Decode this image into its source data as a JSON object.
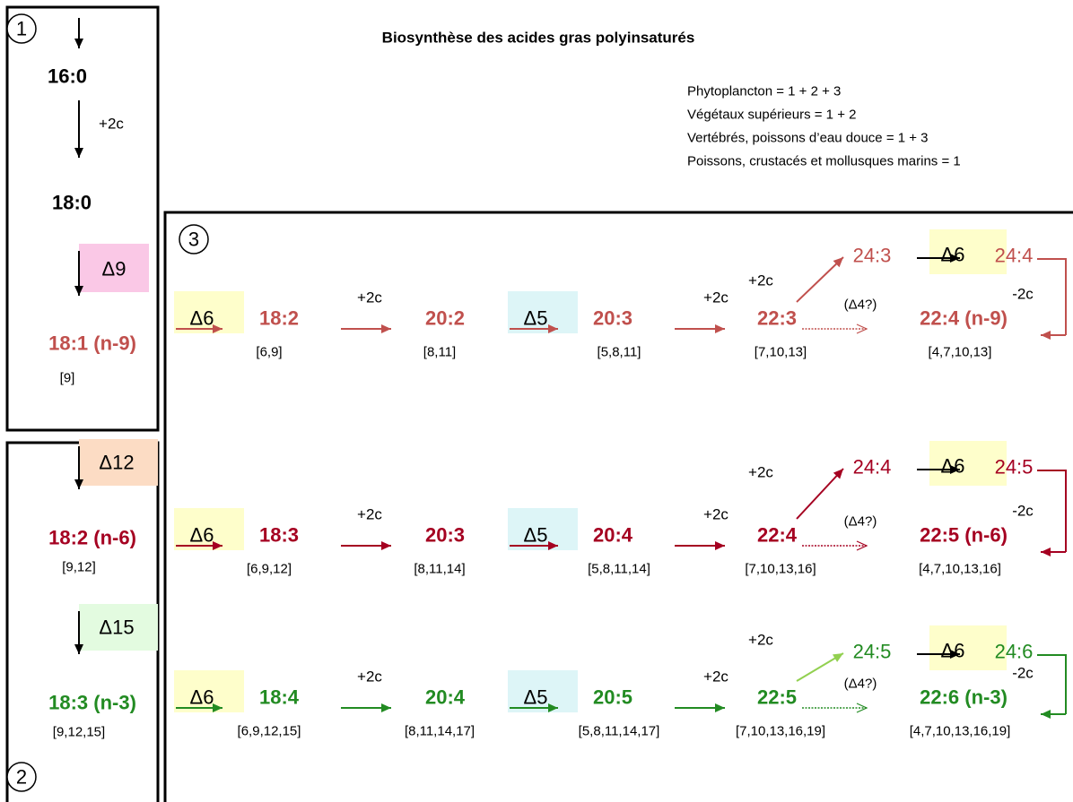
{
  "title": "Biosynthèse des acides gras polyinsaturés",
  "legend": [
    "Phytoplancton = 1 + 2 + 3",
    "Végétaux supérieurs = 1 + 2",
    "Vertébrés, poissons d’eau douce = 1 + 3",
    "Poissons, crustacés et mollusques marins = 1"
  ],
  "pathway1": {
    "number": "1",
    "products": [
      "16:0",
      "18:0",
      "18:1 (n-9)"
    ],
    "elongation": "+2c",
    "desaturase": "Δ9",
    "position": "[9]"
  },
  "pathway2": {
    "number": "2",
    "desaturases": [
      "Δ12",
      "Δ15"
    ],
    "products": [
      "18:2 (n-6)",
      "18:3 (n-3)"
    ],
    "positions": [
      "[9,12]",
      "[9,12,15]"
    ]
  },
  "pathway3": {
    "number": "3",
    "rows": [
      {
        "color": "#c0504d",
        "branch_color": "#c0504d",
        "steps": [
          {
            "enzyme": "Δ6",
            "product": "18:2",
            "position": "[6,9]"
          },
          {
            "enzyme": "+2c",
            "product": "20:2",
            "position": "[8,11]"
          },
          {
            "enzyme": "Δ5",
            "product": "20:3",
            "position": "[5,8,11]"
          },
          {
            "enzyme": "+2c",
            "product": "22:3",
            "position": "[7,10,13]"
          }
        ],
        "elongation": "+2c",
        "branch": [
          "24:3",
          "24:4"
        ],
        "branch_enzyme": "Δ6",
        "shortening": "-2c",
        "hypothetical": "(Δ4?)",
        "final": {
          "product": "22:4 (n-9)",
          "position": "[4,7,10,13]"
        }
      },
      {
        "color": "#a50021",
        "branch_color": "#a50021",
        "steps": [
          {
            "enzyme": "Δ6",
            "product": "18:3",
            "position": "[6,9,12]"
          },
          {
            "enzyme": "+2c",
            "product": "20:3",
            "position": "[8,11,14]"
          },
          {
            "enzyme": "Δ5",
            "product": "20:4",
            "position": "[5,8,11,14]"
          },
          {
            "enzyme": "+2c",
            "product": "22:4",
            "position": "[7,10,13,16]"
          }
        ],
        "elongation": "+2c",
        "branch": [
          "24:4",
          "24:5"
        ],
        "branch_enzyme": "Δ6",
        "shortening": "-2c",
        "hypothetical": "(Δ4?)",
        "final": {
          "product": "22:5 (n-6)",
          "position": "[4,7,10,13,16]"
        }
      },
      {
        "color": "#228b22",
        "branch_color": "#92d050",
        "steps": [
          {
            "enzyme": "Δ6",
            "product": "18:4",
            "position": "[6,9,12,15]"
          },
          {
            "enzyme": "+2c",
            "product": "20:4",
            "position": "[8,11,14,17]"
          },
          {
            "enzyme": "Δ5",
            "product": "20:5",
            "position": "[5,8,11,14,17]"
          },
          {
            "enzyme": "+2c",
            "product": "22:5",
            "position": "[7,10,13,16,19]"
          }
        ],
        "elongation": "+2c",
        "branch": [
          "24:5",
          "24:6"
        ],
        "branch_enzyme": "Δ6",
        "shortening": "-2c",
        "hypothetical": "(Δ4?)",
        "final": {
          "product": "22:6 (n-3)",
          "position": "[4,7,10,13,16,19]"
        }
      }
    ]
  }
}
